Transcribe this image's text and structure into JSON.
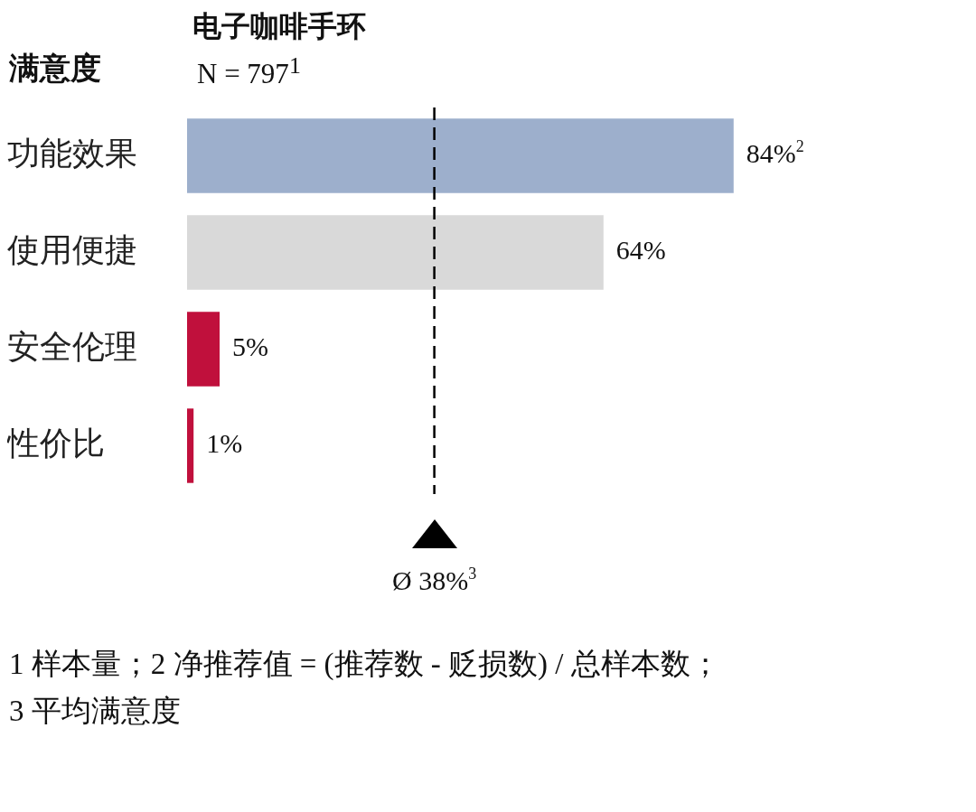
{
  "chart_data": {
    "type": "bar",
    "orientation": "horizontal",
    "title": "电子咖啡手环",
    "subtitle": "N = 797$^{1}$",
    "ylabel": "满意度",
    "categories": [
      "功能效果",
      "使用便捷",
      "安全伦理",
      "性价比"
    ],
    "values": [
      84,
      64,
      5,
      1
    ],
    "colors": [
      "#9dafcc",
      "#d9d9d9",
      "#c0103c",
      "#c0103c"
    ],
    "value_labels": [
      "84%$^{2}$",
      "64%",
      "5%",
      "1%"
    ],
    "tick_labels": "y",
    "grid": false,
    "legend": false,
    "ref_lines": [
      {
        "axis": "x",
        "value": 38,
        "label": "Ø 38%$^{3}$",
        "line_style": "dashed",
        "color": "#000000"
      }
    ],
    "annotations": [
      "1 样本量；2 净推荐值 = (推荐数 - 贬损数) / 总样本数；",
      "3 平均满意度"
    ]
  }
}
